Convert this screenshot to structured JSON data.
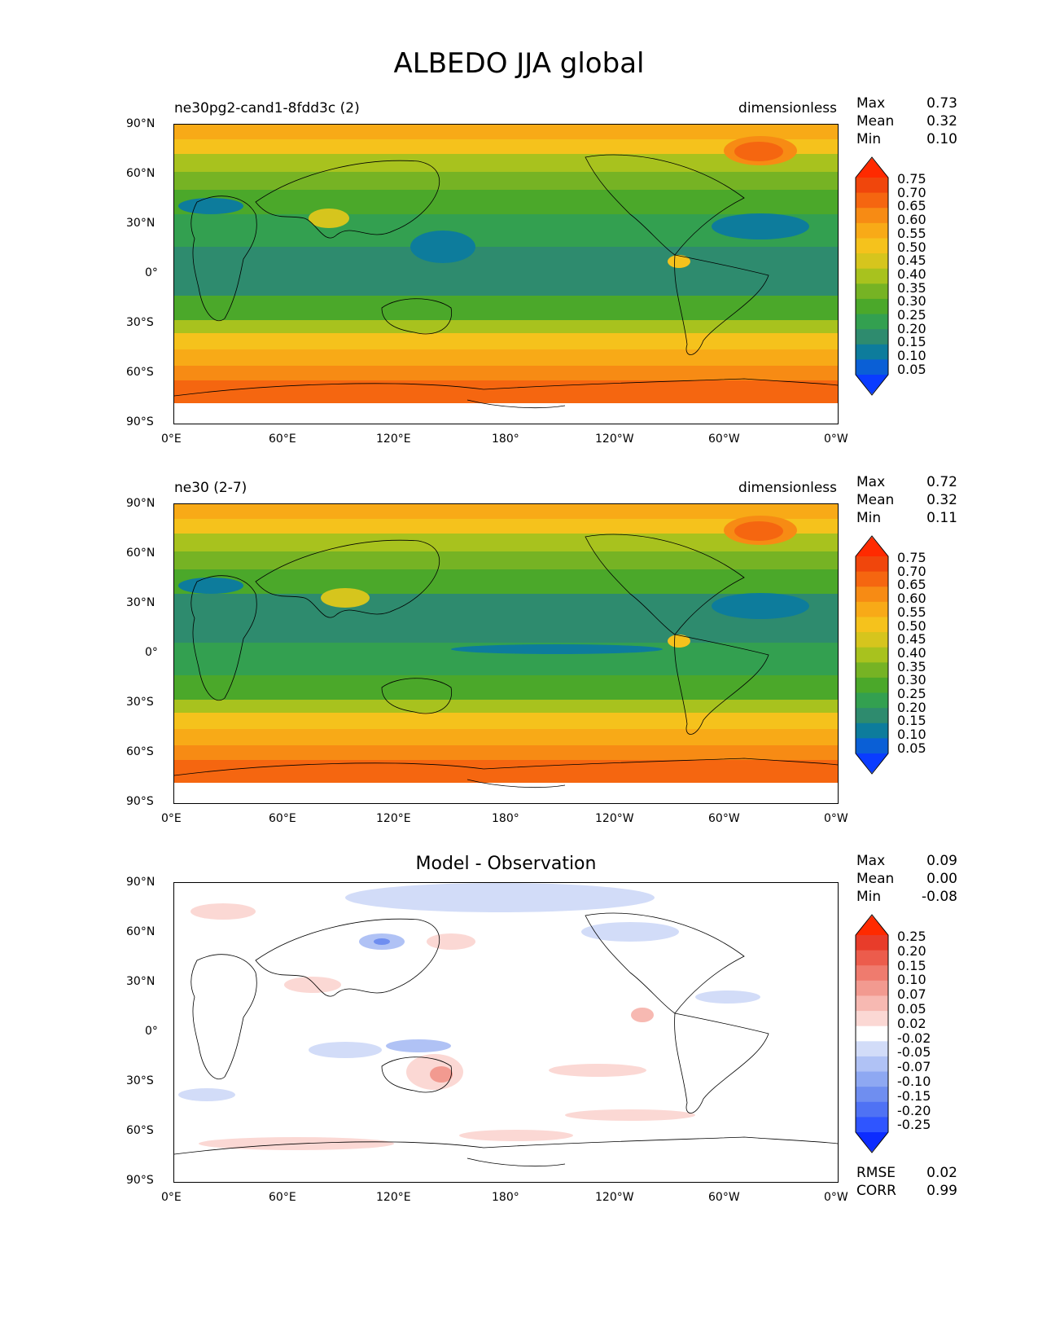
{
  "title": "ALBEDO JJA global",
  "lat_ticks": [
    "90°N",
    "60°N",
    "30°N",
    "0°",
    "30°S",
    "60°S",
    "90°S"
  ],
  "lon_ticks": [
    "0°E",
    "60°E",
    "120°E",
    "180°",
    "120°W",
    "60°W",
    "0°W"
  ],
  "colors": {
    "seq": [
      "#0a3cff",
      "#0a5fd6",
      "#0d7c9c",
      "#2e8b6e",
      "#33a050",
      "#4ba82a",
      "#76b324",
      "#a8c21e",
      "#d6c51d",
      "#f5c21c",
      "#f8aa17",
      "#f78b14",
      "#f56610",
      "#f0460c",
      "#ff2a00"
    ],
    "div": [
      "#0c2cff",
      "#2f55ff",
      "#4f72f4",
      "#6f8ef0",
      "#8ea8f2",
      "#b0c2f5",
      "#d2dcf8",
      "#ffffff",
      "#fbd8d4",
      "#f7b9b2",
      "#f29a90",
      "#ef7b6e",
      "#ec5c4c",
      "#e83c2a",
      "#ff2a00"
    ]
  },
  "chart_data": [
    {
      "type": "heatmap",
      "panel": "test",
      "label": "ne30pg2-cand1-8fdd3c (2)",
      "units": "dimensionless",
      "stats": {
        "max": "0.73",
        "mean": "0.32",
        "min": "0.10"
      },
      "colorbar_levels": [
        "0.75",
        "0.70",
        "0.65",
        "0.60",
        "0.55",
        "0.50",
        "0.45",
        "0.40",
        "0.35",
        "0.30",
        "0.25",
        "0.20",
        "0.15",
        "0.10",
        "0.05"
      ],
      "lat_range": [
        -90,
        90
      ],
      "lon_range": [
        0,
        360
      ]
    },
    {
      "type": "heatmap",
      "panel": "reference",
      "label": "ne30 (2-7)",
      "units": "dimensionless",
      "stats": {
        "max": "0.72",
        "mean": "0.32",
        "min": "0.11"
      },
      "colorbar_levels": [
        "0.75",
        "0.70",
        "0.65",
        "0.60",
        "0.55",
        "0.50",
        "0.45",
        "0.40",
        "0.35",
        "0.30",
        "0.25",
        "0.20",
        "0.15",
        "0.10",
        "0.05"
      ],
      "lat_range": [
        -90,
        90
      ],
      "lon_range": [
        0,
        360
      ]
    },
    {
      "type": "heatmap",
      "panel": "difference",
      "title": "Model - Observation",
      "stats": {
        "max": "0.09",
        "mean": "0.00",
        "min": "-0.08"
      },
      "colorbar_levels": [
        "0.25",
        "0.20",
        "0.15",
        "0.10",
        "0.07",
        "0.05",
        "0.02",
        "-0.02",
        "-0.05",
        "-0.07",
        "-0.10",
        "-0.15",
        "-0.20",
        "-0.25"
      ],
      "rmse": "0.02",
      "corr": "0.99",
      "lat_range": [
        -90,
        90
      ],
      "lon_range": [
        0,
        360
      ]
    }
  ],
  "stat_labels": {
    "max": "Max",
    "mean": "Mean",
    "min": "Min",
    "rmse": "RMSE",
    "corr": "CORR"
  }
}
